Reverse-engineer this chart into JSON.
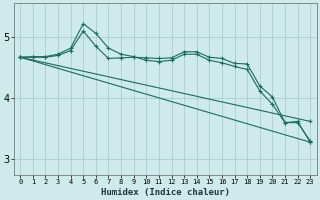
{
  "xlabel": "Humidex (Indice chaleur)",
  "background_color": "#ceeaea",
  "grid_color": "#aacece",
  "line_color": "#1a6b60",
  "xlim": [
    -0.5,
    23.5
  ],
  "ylim": [
    2.75,
    5.55
  ],
  "yticks": [
    3,
    4,
    5
  ],
  "xtick_labels": [
    "0",
    "1",
    "2",
    "3",
    "4",
    "5",
    "6",
    "7",
    "8",
    "9",
    "10",
    "11",
    "12",
    "13",
    "14",
    "15",
    "16",
    "17",
    "18",
    "19",
    "20",
    "21",
    "22",
    "23"
  ],
  "series": [
    {
      "x": [
        0,
        1,
        2,
        3,
        4,
        5,
        6,
        7,
        8,
        9,
        10,
        11,
        12,
        13,
        14,
        15,
        16,
        17,
        18,
        19,
        20,
        21,
        22,
        23
      ],
      "y": [
        4.67,
        4.67,
        4.67,
        4.7,
        4.78,
        5.1,
        4.85,
        4.65,
        4.66,
        4.67,
        4.66,
        4.65,
        4.66,
        4.76,
        4.76,
        4.67,
        4.65,
        4.57,
        4.56,
        4.2,
        4.02,
        3.6,
        3.62,
        3.28
      ],
      "marker": "+"
    },
    {
      "x": [
        0,
        1,
        2,
        3,
        4,
        5,
        6,
        7,
        8,
        9,
        10,
        11,
        12,
        13,
        14,
        15,
        16,
        17,
        18,
        19,
        20,
        21,
        22,
        23
      ],
      "y": [
        4.67,
        4.68,
        4.68,
        4.72,
        4.82,
        5.22,
        5.06,
        4.82,
        4.72,
        4.68,
        4.62,
        4.6,
        4.62,
        4.72,
        4.72,
        4.62,
        4.58,
        4.52,
        4.47,
        4.12,
        3.9,
        3.6,
        3.6,
        3.3
      ],
      "marker": "+"
    },
    {
      "x": [
        0,
        23
      ],
      "y": [
        4.67,
        3.62
      ],
      "marker": "+"
    },
    {
      "x": [
        0,
        23
      ],
      "y": [
        4.67,
        3.28
      ],
      "marker": "+"
    }
  ]
}
